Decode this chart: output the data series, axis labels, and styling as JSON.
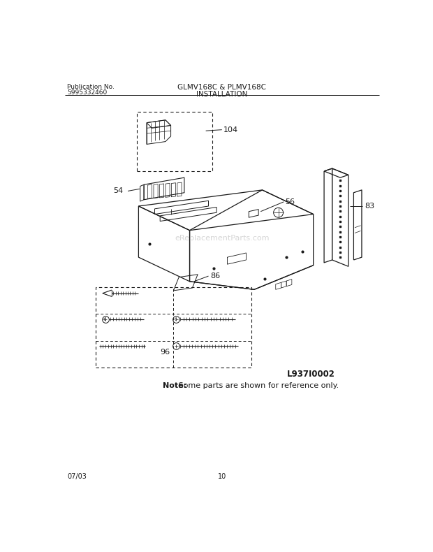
{
  "title_center": "GLMV168C & PLMV168C",
  "title_sub": "INSTALLATION",
  "pub_no_label": "Publication No.",
  "pub_no": "5995332460",
  "page_date": "07/03",
  "page_num": "10",
  "diagram_id": "L937I0002",
  "note_text": " Some parts are shown for reference only.",
  "note_bold": "Note:",
  "part_labels": [
    "104",
    "83",
    "54",
    "56",
    "86",
    "96"
  ],
  "bg_color": "#ffffff",
  "line_color": "#1a1a1a",
  "watermark": "eReplacementParts.com"
}
